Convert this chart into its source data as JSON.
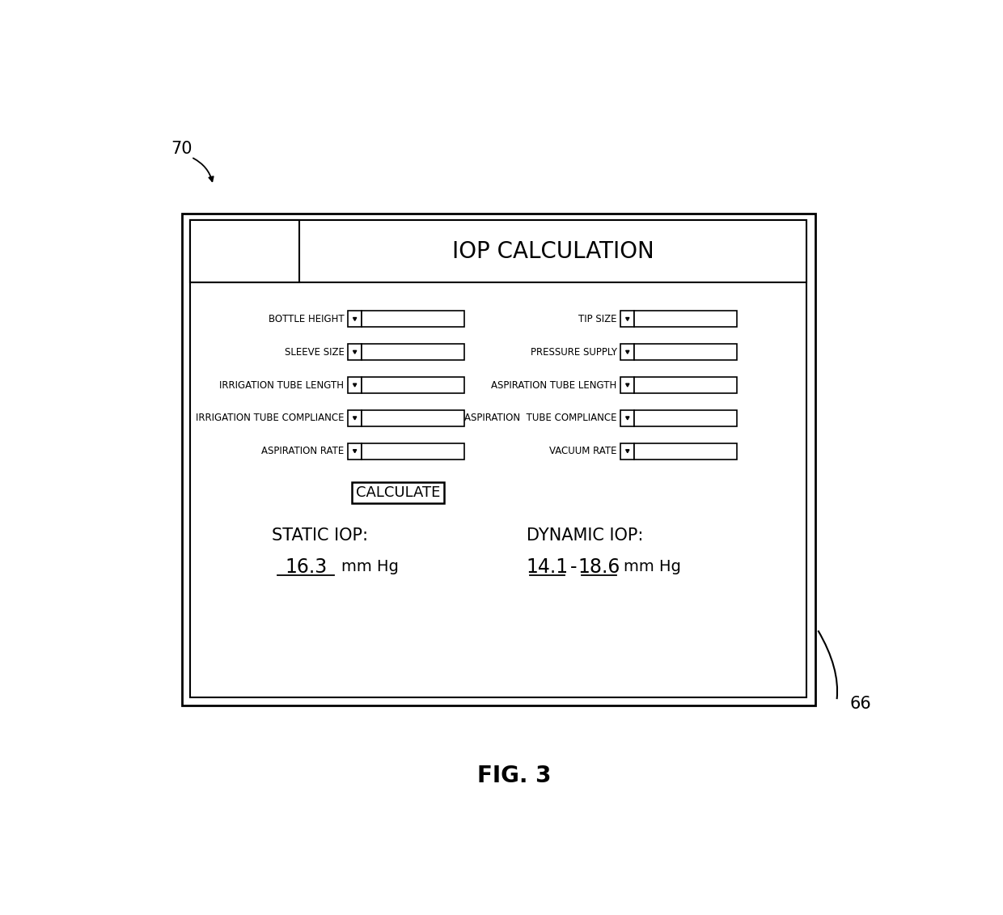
{
  "title": "IOP CALCULATION",
  "fig3_label": "FIG. 3",
  "label_70": "70",
  "label_66": "66",
  "left_fields": [
    "BOTTLE HEIGHT",
    "SLEEVE SIZE",
    "IRRIGATION TUBE LENGTH",
    "IRRIGATION TUBE COMPLIANCE",
    "ASPIRATION RATE"
  ],
  "right_fields": [
    "TIP SIZE",
    "PRESSURE SUPPLY",
    "ASPIRATION TUBE LENGTH",
    "ASPIRATION  TUBE COMPLIANCE",
    "VACUUM RATE"
  ],
  "calculate_btn": "CALCULATE",
  "static_iop_label": "STATIC IOP:",
  "dynamic_iop_label": "DYNAMIC IOP:",
  "static_iop_value": "16.3",
  "dynamic_iop_val1": "14.1",
  "dynamic_iop_val2": "18.6",
  "mmhg": "mm Hg",
  "bg_color": "#ffffff",
  "border_color": "#000000",
  "text_color": "#000000"
}
